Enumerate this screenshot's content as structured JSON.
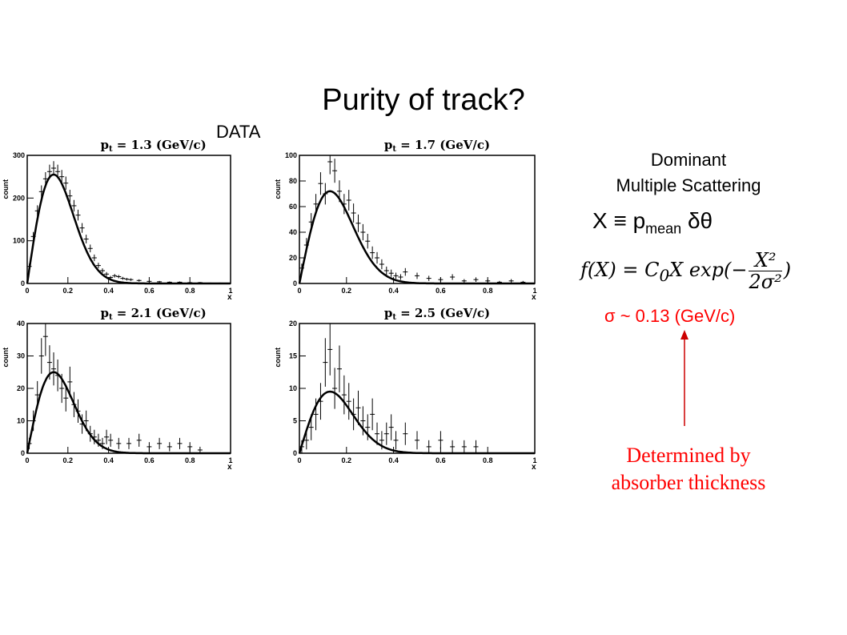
{
  "page": {
    "title": "Purity of track?",
    "data_label": "DATA"
  },
  "side": {
    "dominant_line1": "Dominant",
    "dominant_line2": "Multiple Scattering",
    "x_def_prefix": "X ≡ p",
    "x_def_sub": "mean",
    "x_def_suffix": " δθ",
    "formula_lhs": "f(X) = C",
    "formula_sub": "0",
    "formula_mid": "X exp(−",
    "formula_num": "X²",
    "formula_den": "2σ²",
    "formula_end": ")",
    "sigma_text": "σ ~ 0.13 (GeV/c)",
    "determined_line1": "Determined by",
    "determined_line2": "absorber thickness",
    "accent_color": "#ff0000"
  },
  "chart_data": [
    {
      "type": "scatter",
      "title": "p",
      "title_sub": "t",
      "title_rest": " = 1.3 (GeV/c)",
      "xlabel": "x",
      "ylabel": "count",
      "xlim": [
        0,
        1
      ],
      "ylim": [
        0,
        300
      ],
      "xticks": [
        "0",
        "0.2",
        "0.4",
        "0.6",
        "0.8",
        "1"
      ],
      "yticks": [
        "0",
        "100",
        "200",
        "300"
      ],
      "ytick_values": [
        0,
        100,
        200,
        300
      ],
      "fit_peak": 255,
      "sigma": 0.13,
      "x": [
        0.01,
        0.03,
        0.05,
        0.07,
        0.09,
        0.11,
        0.13,
        0.15,
        0.17,
        0.19,
        0.21,
        0.23,
        0.25,
        0.27,
        0.29,
        0.31,
        0.33,
        0.35,
        0.37,
        0.39,
        0.41,
        0.43,
        0.45,
        0.47,
        0.49,
        0.51,
        0.55,
        0.6,
        0.65,
        0.7,
        0.75,
        0.8,
        0.85,
        0.9,
        0.95
      ],
      "y": [
        40,
        110,
        170,
        215,
        245,
        262,
        270,
        262,
        250,
        235,
        205,
        182,
        160,
        130,
        104,
        82,
        60,
        42,
        30,
        22,
        14,
        18,
        16,
        12,
        10,
        9,
        7,
        5,
        4,
        3,
        3,
        2,
        2,
        1,
        1
      ]
    },
    {
      "type": "scatter",
      "title": "p",
      "title_sub": "t",
      "title_rest": " = 1.7 (GeV/c)",
      "xlabel": "x",
      "ylabel": "count",
      "xlim": [
        0,
        1
      ],
      "ylim": [
        0,
        100
      ],
      "xticks": [
        "0",
        "0.2",
        "0.4",
        "0.6",
        "0.8",
        "1"
      ],
      "yticks": [
        "0",
        "20",
        "40",
        "60",
        "80",
        "100"
      ],
      "ytick_values": [
        0,
        20,
        40,
        60,
        80,
        100
      ],
      "fit_peak": 72,
      "sigma": 0.13,
      "x": [
        0.01,
        0.03,
        0.05,
        0.07,
        0.09,
        0.11,
        0.13,
        0.15,
        0.17,
        0.19,
        0.21,
        0.23,
        0.25,
        0.27,
        0.29,
        0.31,
        0.33,
        0.35,
        0.37,
        0.39,
        0.41,
        0.43,
        0.45,
        0.5,
        0.55,
        0.6,
        0.65,
        0.7,
        0.75,
        0.8,
        0.85,
        0.9,
        0.95
      ],
      "y": [
        12,
        30,
        48,
        62,
        78,
        70,
        95,
        88,
        72,
        62,
        65,
        55,
        47,
        40,
        33,
        24,
        20,
        15,
        10,
        8,
        6,
        5,
        9,
        6,
        4,
        3,
        5,
        2,
        3,
        2,
        1,
        2,
        1
      ]
    },
    {
      "type": "scatter",
      "title": "p",
      "title_sub": "t",
      "title_rest": " = 2.1 (GeV/c)",
      "xlabel": "x",
      "ylabel": "count",
      "xlim": [
        0,
        1
      ],
      "ylim": [
        0,
        40
      ],
      "xticks": [
        "0",
        "0.2",
        "0.4",
        "0.6",
        "0.8",
        "1"
      ],
      "yticks": [
        "0",
        "10",
        "20",
        "30",
        "40"
      ],
      "ytick_values": [
        0,
        10,
        20,
        30,
        40
      ],
      "fit_peak": 25,
      "sigma": 0.13,
      "x": [
        0.01,
        0.03,
        0.05,
        0.07,
        0.09,
        0.11,
        0.13,
        0.15,
        0.17,
        0.19,
        0.21,
        0.23,
        0.25,
        0.27,
        0.29,
        0.31,
        0.33,
        0.35,
        0.37,
        0.39,
        0.41,
        0.45,
        0.5,
        0.55,
        0.6,
        0.65,
        0.7,
        0.75,
        0.8,
        0.85
      ],
      "y": [
        3,
        10,
        18,
        30,
        36,
        28,
        26,
        24,
        20,
        17,
        22,
        15,
        13,
        9,
        10,
        6,
        5,
        4,
        3,
        5,
        4,
        3,
        3,
        4,
        2,
        3,
        2,
        3,
        2,
        1
      ]
    },
    {
      "type": "scatter",
      "title": "p",
      "title_sub": "t",
      "title_rest": " = 2.5 (GeV/c)",
      "xlabel": "x",
      "ylabel": "count",
      "xlim": [
        0,
        1
      ],
      "ylim": [
        0,
        20
      ],
      "xticks": [
        "0",
        "0.2",
        "0.4",
        "0.6",
        "0.8",
        "1"
      ],
      "yticks": [
        "0",
        "5",
        "10",
        "15",
        "20"
      ],
      "ytick_values": [
        0,
        5,
        10,
        15,
        20
      ],
      "fit_peak": 9.5,
      "sigma": 0.13,
      "x": [
        0.01,
        0.03,
        0.05,
        0.07,
        0.09,
        0.11,
        0.13,
        0.15,
        0.17,
        0.19,
        0.21,
        0.23,
        0.25,
        0.27,
        0.29,
        0.31,
        0.33,
        0.35,
        0.37,
        0.39,
        0.41,
        0.45,
        0.5,
        0.55,
        0.6,
        0.65,
        0.7,
        0.75
      ],
      "y": [
        1,
        2,
        4,
        6,
        8,
        14,
        16,
        10,
        13,
        9,
        8,
        6,
        7,
        5,
        4,
        6,
        3,
        2,
        3,
        4,
        2,
        3,
        2,
        1,
        2,
        1,
        1,
        1
      ]
    }
  ]
}
